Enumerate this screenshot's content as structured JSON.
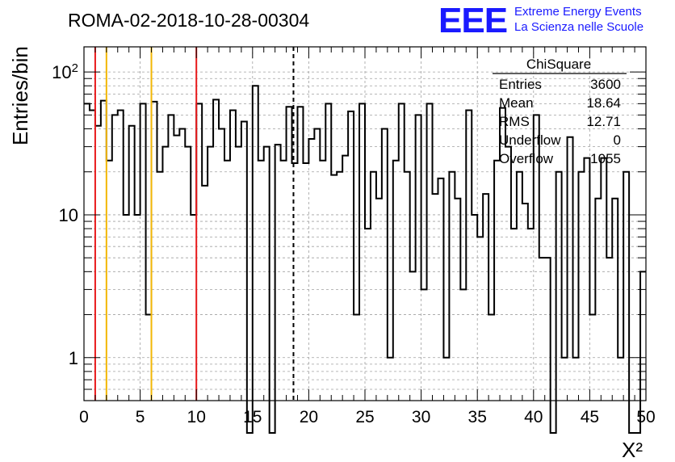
{
  "header": {
    "title": "ROMA-02-2018-10-28-00304",
    "logo_letters": "EEE",
    "logo_line1": "Extreme Energy Events",
    "logo_line2": "La Scienza nelle Scuole"
  },
  "stats_box": {
    "name": "ChiSquare",
    "rows": [
      {
        "label": "Entries",
        "value": "3600"
      },
      {
        "label": "Mean",
        "value": "18.64"
      },
      {
        "label": "RMS",
        "value": "12.71"
      },
      {
        "label": "Underflow",
        "value": "0"
      },
      {
        "label": "Overflow",
        "value": "1055"
      }
    ]
  },
  "colors": {
    "histogram": "#000000",
    "red_lines": "#e8191b",
    "yellow_lines": "#f2b705",
    "grid": "#a0a0a0",
    "logo": "#1a1aff"
  },
  "chart_data": {
    "type": "bar",
    "style": "step-histogram",
    "title": "ROMA-02-2018-10-28-00304",
    "xlabel": "X²",
    "ylabel": "Entries/bin",
    "xlim": [
      0,
      50
    ],
    "ylim": [
      0.5,
      150
    ],
    "yscale": "log",
    "grid": true,
    "bin_width": 0.5,
    "x_ticks": [
      "0",
      "5",
      "10",
      "15",
      "20",
      "25",
      "30",
      "35",
      "40",
      "45",
      "50"
    ],
    "y_ticks": [
      {
        "value": 1,
        "label": "1"
      },
      {
        "value": 10,
        "label": "10"
      },
      {
        "value": 100,
        "label": "10²"
      }
    ],
    "values": [
      60,
      54,
      42,
      63,
      24,
      50,
      54,
      10,
      42,
      10,
      60,
      2,
      62,
      20,
      30,
      50,
      36,
      40,
      30,
      10,
      60,
      16,
      30,
      64,
      40,
      24,
      54,
      30,
      45,
      0,
      80,
      24,
      30,
      0,
      31,
      24,
      57,
      23,
      57,
      23,
      34,
      40,
      24,
      60,
      19,
      20,
      26,
      53,
      2,
      60,
      8,
      20,
      13,
      40,
      1,
      24,
      60,
      20,
      4,
      50,
      3,
      60,
      14,
      18,
      1,
      20,
      13,
      3,
      54,
      10,
      7,
      14,
      2,
      24,
      56,
      30,
      8,
      20,
      12,
      8,
      50,
      5,
      5,
      0,
      20,
      1,
      35,
      1,
      20,
      25,
      2,
      13,
      25,
      5,
      13,
      1,
      20,
      0,
      0,
      4
    ],
    "vertical_lines": [
      {
        "x": 1,
        "color": "red",
        "style": "solid"
      },
      {
        "x": 2,
        "color": "yellow",
        "style": "solid"
      },
      {
        "x": 6,
        "color": "yellow",
        "style": "solid"
      },
      {
        "x": 10,
        "color": "red",
        "style": "solid"
      },
      {
        "x": 18.64,
        "color": "black",
        "style": "dashed"
      }
    ]
  }
}
